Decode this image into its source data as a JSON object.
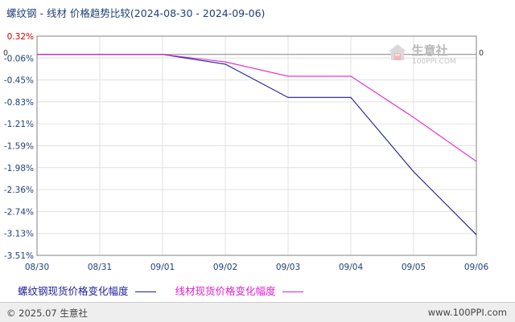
{
  "title": "螺纹钢 - 线材 价格趋势比较(2024-08-30 - 2024-09-06)",
  "watermark": {
    "name": "生意社",
    "url": "100PPI.COM"
  },
  "footer": {
    "copyright": "© 2025.07 生意社",
    "site": "www.100PPI.com"
  },
  "chart_data": {
    "type": "line",
    "x": [
      "08/30",
      "08/31",
      "09/01",
      "09/02",
      "09/03",
      "09/04",
      "09/05",
      "09/06"
    ],
    "y_ticks": [
      "0.32%",
      "-0.06%",
      "-0.45%",
      "-0.83%",
      "-1.21%",
      "-1.59%",
      "-1.98%",
      "-2.36%",
      "-2.74%",
      "-3.13%",
      "-3.51%"
    ],
    "ylim": [
      -3.51,
      0.32
    ],
    "zero_label": "0",
    "grid": true,
    "legend_position": "bottom",
    "series": [
      {
        "name": "螺纹钢现货价格变化幅度",
        "color": "#1c1c9e",
        "values": [
          0,
          0,
          0,
          -0.17,
          -0.75,
          -0.75,
          -2.05,
          -3.15
        ]
      },
      {
        "name": "线材现货价格变化幅度",
        "color": "#e020d0",
        "values": [
          0,
          0,
          0,
          -0.13,
          -0.38,
          -0.38,
          -1.1,
          -1.87
        ]
      }
    ],
    "colors": {
      "axis": "#808080",
      "grid": "#e0e0e0",
      "positive_tick": "#cc0000",
      "negative_tick": "#1f3f7a"
    }
  }
}
